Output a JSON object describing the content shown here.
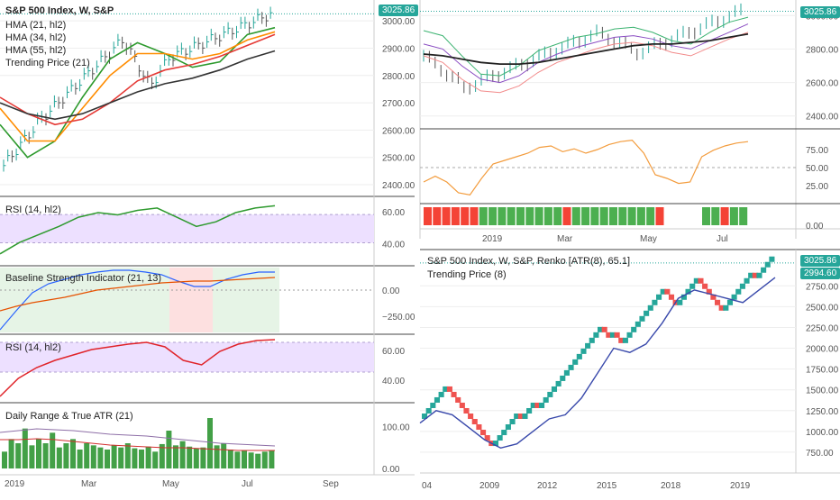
{
  "colors": {
    "background": "#ffffff",
    "axis_text": "#555555",
    "grid": "#eeeeee",
    "divider": "#444444",
    "price_tag": "#26a69a",
    "price_tag_red": "#ef5350",
    "bar_up": "#26a69a",
    "bar_down": "#555555",
    "hma21": "#2e9a2e",
    "hma34": "#ff8c00",
    "hma55": "#e53935",
    "trending": "#333333",
    "rsi_line": "#2e9a2e",
    "rsi_band": "#ede0ff",
    "rsi2_line": "#e0242a",
    "bsi_fast": "#2962ff",
    "bsi_slow": "#e65100",
    "bsi_green": "#e6f4e6",
    "bsi_red": "#fde0e0",
    "range_bar": "#43a047",
    "atr_line": "#8e6fa7",
    "atr_line2": "#d32f2f",
    "orange_osc": "#f39c3d",
    "renko_up": "#26a69a",
    "renko_down": "#ef5350",
    "renko_ma": "#3949ab",
    "env_upper": "#3cb371",
    "env_mid": "#8a4cc2",
    "env_lower": "#f28a8a",
    "sma_black": "#222222",
    "hist_green": "#4caf50",
    "hist_red": "#f44336"
  },
  "left": {
    "legend": {
      "title": "S&P 500 Index, W, S&P",
      "lines": [
        "HMA (21, hl2)",
        "HMA (34, hl2)",
        "HMA (55, hl2)",
        "Trending Price (21)"
      ]
    },
    "last_price": "3025.86",
    "price_ticks": [
      "3000.00",
      "2900.00",
      "2800.00",
      "2700.00",
      "2600.00",
      "2500.00",
      "2400.00"
    ],
    "rsi": {
      "label": "RSI (14, hl2)",
      "ticks": [
        "60.00",
        "40.00"
      ]
    },
    "bsi": {
      "label": "Baseline Strength Indicator (21, 13)",
      "ticks": [
        "0.00",
        "−250.00"
      ]
    },
    "rsi2": {
      "label": "RSI (14, hl2)",
      "ticks": [
        "60.00",
        "40.00"
      ]
    },
    "range": {
      "label": "Daily Range & True ATR (21)",
      "ticks": [
        "100.00",
        "0.00"
      ]
    },
    "time_ticks": [
      "2019",
      "Mar",
      "May",
      "Jul",
      "Sep"
    ]
  },
  "right_top": {
    "last_price": "3025.86",
    "price_ticks": [
      "3000.00",
      "2800.00",
      "2600.00",
      "2400.00"
    ],
    "osc_ticks": [
      "75.00",
      "50.00",
      "25.00"
    ],
    "hist_tick": "0.00",
    "time_ticks": [
      "2019",
      "Mar",
      "May",
      "Jul"
    ]
  },
  "right_bottom": {
    "legend": {
      "title": "S&P 500 Index, W, S&P, Renko [ATR(8), 65.1]",
      "lines": [
        "Trending Price (8)"
      ]
    },
    "last_price": "3025.86",
    "ma_price": "2994.60",
    "price_ticks": [
      "2750.00",
      "2500.00",
      "2250.00",
      "2000.00",
      "1750.00",
      "1500.00",
      "1250.00",
      "1000.00",
      "750.00"
    ],
    "time_ticks": [
      "04",
      "2009",
      "2012",
      "2015",
      "2018",
      "2019"
    ]
  },
  "chart_data": [
    {
      "type": "line",
      "title": "S&P 500 Index, W, S&P",
      "x_labels": [
        "2019",
        "Mar",
        "May",
        "Jul"
      ],
      "series": [
        {
          "name": "HMA (21, hl2)",
          "values": [
            2620,
            2500,
            2560,
            2720,
            2860,
            2920,
            2880,
            2830,
            2850,
            2950,
            2975
          ]
        },
        {
          "name": "HMA (34, hl2)",
          "values": [
            2680,
            2560,
            2560,
            2680,
            2800,
            2880,
            2880,
            2860,
            2880,
            2930,
            2960
          ]
        },
        {
          "name": "HMA (55, hl2)",
          "values": [
            2720,
            2660,
            2620,
            2640,
            2700,
            2780,
            2820,
            2840,
            2870,
            2910,
            2950
          ]
        },
        {
          "name": "Trending Price (21)",
          "values": [
            2700,
            2660,
            2640,
            2660,
            2700,
            2740,
            2770,
            2790,
            2820,
            2860,
            2890
          ]
        }
      ],
      "ylim": [
        2400,
        3050
      ]
    },
    {
      "type": "line",
      "title": "RSI (14, hl2)",
      "series": [
        {
          "name": "RSI (14, hl2)",
          "values": [
            28,
            38,
            45,
            52,
            60,
            64,
            62,
            66,
            68,
            60,
            52,
            56,
            64,
            68,
            70
          ]
        }
      ],
      "ylim": [
        20,
        75
      ]
    },
    {
      "type": "bar",
      "title": "Daily Range & True ATR (21)",
      "values": [
        40,
        70,
        60,
        95,
        55,
        70,
        60,
        85,
        50,
        60,
        70,
        45,
        60,
        55,
        50,
        45,
        55,
        50,
        60,
        48,
        45,
        52,
        40,
        58,
        90,
        55,
        65,
        52,
        48,
        50,
        120,
        55,
        60,
        45,
        40,
        42,
        38,
        35,
        40,
        42
      ],
      "ylim": [
        0,
        150
      ]
    },
    {
      "type": "bar",
      "title": "S&P 500 Index, W, S&P, Renko [ATR(8), 65.1]",
      "x_labels": [
        "04",
        "2009",
        "2012",
        "2015",
        "2018",
        "2019"
      ],
      "ylim": [
        500,
        3100
      ]
    }
  ]
}
